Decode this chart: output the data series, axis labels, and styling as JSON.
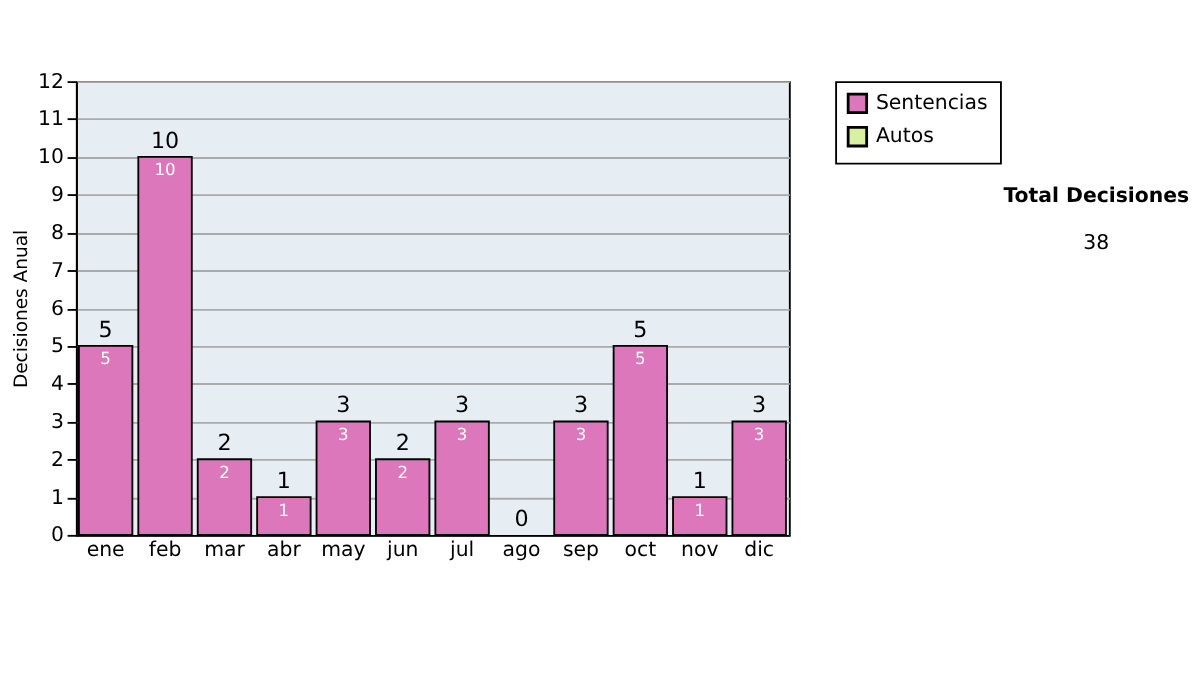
{
  "chart_data": {
    "type": "bar",
    "stacked": true,
    "ylabel": "Decisiones Anual",
    "categories": [
      "ene",
      "feb",
      "mar",
      "abr",
      "may",
      "jun",
      "jul",
      "ago",
      "sep",
      "oct",
      "nov",
      "dic"
    ],
    "series": [
      {
        "name": "Sentencias",
        "color": "#dd77bb",
        "values": [
          5,
          10,
          2,
          1,
          3,
          2,
          3,
          0,
          3,
          5,
          1,
          3
        ],
        "value_labels": [
          "5",
          "10",
          "2",
          "1",
          "3",
          "2",
          "3",
          null,
          "3",
          "5",
          "1",
          "3"
        ]
      },
      {
        "name": "Autos",
        "color": "#d8f0a0",
        "values": [
          0,
          0,
          0,
          0,
          0,
          0,
          0,
          0,
          0,
          0,
          0,
          0
        ]
      }
    ],
    "totals": [
      "5",
      "10",
      "2",
      "1",
      "3",
      "2",
      "3",
      "0",
      "3",
      "5",
      "1",
      "3"
    ],
    "ylim": [
      0,
      12
    ],
    "yticks": [
      0,
      1,
      2,
      3,
      4,
      5,
      6,
      7,
      8,
      9,
      10,
      11,
      12
    ],
    "grid": "y",
    "legend": "right",
    "annotations": [
      "Total Decisiones",
      "38"
    ]
  }
}
